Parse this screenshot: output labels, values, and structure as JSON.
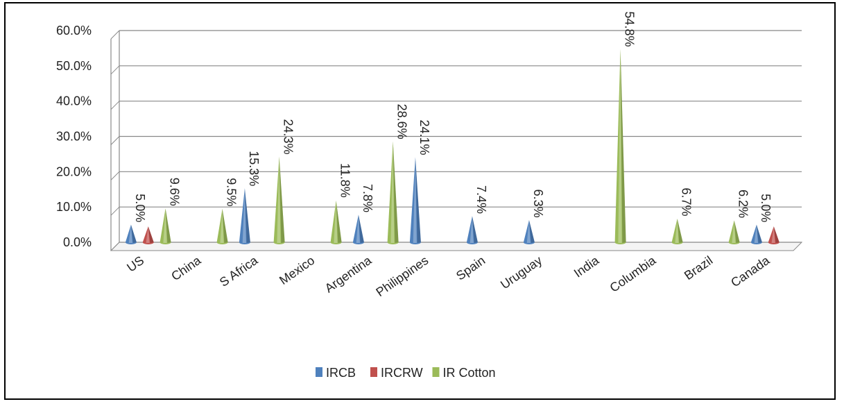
{
  "chart_data": {
    "type": "bar",
    "style": "3d-cone",
    "categories": [
      "US",
      "China",
      "S Africa",
      "Mexico",
      "Argentina",
      "Philippines",
      "Spain",
      "Uruguay",
      "India",
      "Columbia",
      "Brazil",
      "Canada"
    ],
    "series": [
      {
        "name": "IRCB",
        "color": "#4f81bd",
        "values": [
          5.0,
          null,
          15.3,
          null,
          7.8,
          24.1,
          7.4,
          6.3,
          null,
          null,
          null,
          5.0
        ],
        "labels": [
          "5.0%",
          null,
          "15.3%",
          null,
          "7.8%",
          "24.1%",
          "7.4%",
          "6.3%",
          null,
          null,
          null,
          "5.0%"
        ]
      },
      {
        "name": "IRCRW",
        "color": "#c0504d",
        "values": [
          4.5,
          null,
          null,
          null,
          null,
          null,
          null,
          null,
          null,
          null,
          null,
          4.5
        ],
        "labels": [
          null,
          null,
          null,
          null,
          null,
          null,
          null,
          null,
          null,
          null,
          null,
          null
        ]
      },
      {
        "name": "IR Cotton",
        "color": "#9bbb59",
        "values": [
          9.6,
          9.5,
          24.3,
          11.8,
          28.6,
          null,
          null,
          null,
          54.8,
          6.7,
          6.2,
          null
        ],
        "labels": [
          "9.6%",
          "9.5%",
          "24.3%",
          "11.8%",
          "28.6%",
          null,
          null,
          null,
          "54.8%",
          "6.7%",
          "6.2%",
          null
        ]
      }
    ],
    "yticks": [
      "0.0%",
      "10.0%",
      "20.0%",
      "30.0%",
      "40.0%",
      "50.0%",
      "60.0%"
    ],
    "ylim": [
      0,
      60
    ],
    "grid": true,
    "legend": "bottom"
  }
}
